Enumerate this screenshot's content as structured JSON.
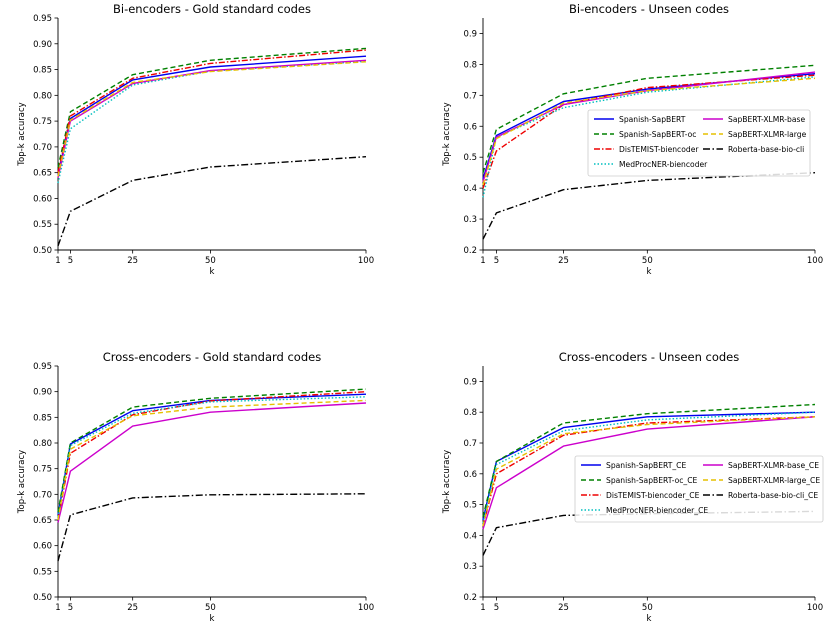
{
  "styles": {
    "Spanish-SapBERT": {
      "color": "#0000ee",
      "dash": ""
    },
    "Spanish-SapBERT-oc": {
      "color": "#008000",
      "dash": "5,3"
    },
    "DisTEMIST-biencoder": {
      "color": "#ee0000",
      "dash": "6,2,1.5,2"
    },
    "MedProcNER-biencoder": {
      "color": "#00bfbf",
      "dash": "1.5,2"
    },
    "SapBERT-XLMR-base": {
      "color": "#cc00cc",
      "dash": ""
    },
    "SapBERT-XLMR-large": {
      "color": "#e6c000",
      "dash": "5,3"
    },
    "Roberta-base-bio-cli": {
      "color": "#000000",
      "dash": "7,2.5,1.5,2.5"
    }
  },
  "chart_data": [
    {
      "type": "line",
      "title": "Bi-encoders - Gold standard codes",
      "xlabel": "k",
      "ylabel": "Top-k accuracy",
      "x": [
        1,
        5,
        25,
        50,
        100
      ],
      "xticks": [
        1,
        5,
        25,
        50,
        100
      ],
      "ylim": [
        0.5,
        0.95
      ],
      "yticks": [
        "0.50",
        "0.55",
        "0.60",
        "0.65",
        "0.70",
        "0.75",
        "0.80",
        "0.85",
        "0.90",
        "0.95"
      ],
      "legend": null,
      "series": [
        {
          "name": "Spanish-SapBERT",
          "style": "Spanish-SapBERT",
          "values": [
            0.645,
            0.755,
            0.83,
            0.855,
            0.876
          ]
        },
        {
          "name": "Spanish-SapBERT-oc",
          "style": "Spanish-SapBERT-oc",
          "values": [
            0.66,
            0.768,
            0.84,
            0.868,
            0.891
          ]
        },
        {
          "name": "DisTEMIST-biencoder",
          "style": "DisTEMIST-biencoder",
          "values": [
            0.65,
            0.76,
            0.833,
            0.862,
            0.888
          ]
        },
        {
          "name": "MedProcNER-biencoder",
          "style": "MedProcNER-biencoder",
          "values": [
            0.63,
            0.735,
            0.82,
            0.847,
            0.866
          ]
        },
        {
          "name": "SapBERT-XLMR-base",
          "style": "SapBERT-XLMR-base",
          "values": [
            0.64,
            0.75,
            0.823,
            0.848,
            0.868
          ]
        },
        {
          "name": "SapBERT-XLMR-large",
          "style": "SapBERT-XLMR-large",
          "values": [
            0.643,
            0.752,
            0.825,
            0.846,
            0.865
          ]
        },
        {
          "name": "Roberta-base-bio-cli",
          "style": "Roberta-base-bio-cli",
          "values": [
            0.508,
            0.575,
            0.635,
            0.661,
            0.681
          ]
        }
      ]
    },
    {
      "type": "line",
      "title": "Bi-encoders - Unseen codes",
      "xlabel": "k",
      "ylabel": "Top-k accuracy",
      "x": [
        1,
        5,
        25,
        50,
        100
      ],
      "xticks": [
        1,
        5,
        25,
        50,
        100
      ],
      "ylim": [
        0.2,
        0.95
      ],
      "yticks": [
        "0.2",
        "0.3",
        "0.4",
        "0.5",
        "0.6",
        "0.7",
        "0.8",
        "0.9"
      ],
      "legend": "center-right",
      "series": [
        {
          "name": "Spanish-SapBERT",
          "style": "Spanish-SapBERT",
          "values": [
            0.43,
            0.57,
            0.68,
            0.72,
            0.77
          ]
        },
        {
          "name": "Spanish-SapBERT-oc",
          "style": "Spanish-SapBERT-oc",
          "values": [
            0.45,
            0.59,
            0.705,
            0.755,
            0.797
          ]
        },
        {
          "name": "DisTEMIST-biencoder",
          "style": "DisTEMIST-biencoder",
          "values": [
            0.4,
            0.52,
            0.67,
            0.725,
            0.765
          ]
        },
        {
          "name": "MedProcNER-biencoder",
          "style": "MedProcNER-biencoder",
          "values": [
            0.37,
            0.565,
            0.66,
            0.71,
            0.76
          ]
        },
        {
          "name": "SapBERT-XLMR-base",
          "style": "SapBERT-XLMR-base",
          "values": [
            0.42,
            0.565,
            0.67,
            0.715,
            0.775
          ]
        },
        {
          "name": "SapBERT-XLMR-large",
          "style": "SapBERT-XLMR-large",
          "values": [
            0.41,
            0.56,
            0.675,
            0.715,
            0.755
          ]
        },
        {
          "name": "Roberta-base-bio-cli",
          "style": "Roberta-base-bio-cli",
          "values": [
            0.235,
            0.32,
            0.395,
            0.425,
            0.45
          ]
        }
      ]
    },
    {
      "type": "line",
      "title": "Cross-encoders - Gold standard codes",
      "xlabel": "k",
      "ylabel": "Top-k accuracy",
      "x": [
        1,
        5,
        25,
        50,
        100
      ],
      "xticks": [
        1,
        5,
        25,
        50,
        100
      ],
      "ylim": [
        0.5,
        0.95
      ],
      "yticks": [
        "0.50",
        "0.55",
        "0.60",
        "0.65",
        "0.70",
        "0.75",
        "0.80",
        "0.85",
        "0.90",
        "0.95"
      ],
      "legend": null,
      "series": [
        {
          "name": "Spanish-SapBERT_CE",
          "style": "Spanish-SapBERT",
          "values": [
            0.66,
            0.798,
            0.863,
            0.883,
            0.895
          ]
        },
        {
          "name": "Spanish-SapBERT-oc_CE",
          "style": "Spanish-SapBERT-oc",
          "values": [
            0.665,
            0.8,
            0.87,
            0.887,
            0.905
          ]
        },
        {
          "name": "DisTEMIST-biencoder_CE",
          "style": "DisTEMIST-biencoder",
          "values": [
            0.65,
            0.78,
            0.855,
            0.882,
            0.9
          ]
        },
        {
          "name": "MedProcNER-biencoder_CE",
          "style": "MedProcNER-biencoder",
          "values": [
            0.655,
            0.795,
            0.858,
            0.88,
            0.89
          ]
        },
        {
          "name": "SapBERT-XLMR-base_CE",
          "style": "SapBERT-XLMR-base",
          "values": [
            0.645,
            0.745,
            0.833,
            0.86,
            0.878
          ]
        },
        {
          "name": "SapBERT-XLMR-large_CE",
          "style": "SapBERT-XLMR-large",
          "values": [
            0.65,
            0.788,
            0.853,
            0.87,
            0.883
          ]
        },
        {
          "name": "Roberta-base-bio-cli_CE",
          "style": "Roberta-base-bio-cli",
          "values": [
            0.57,
            0.66,
            0.693,
            0.699,
            0.701
          ]
        }
      ]
    },
    {
      "type": "line",
      "title": "Cross-encoders - Unseen codes",
      "xlabel": "k",
      "ylabel": "Top-k accuracy",
      "x": [
        1,
        5,
        25,
        50,
        100
      ],
      "xticks": [
        1,
        5,
        25,
        50,
        100
      ],
      "ylim": [
        0.2,
        0.95
      ],
      "yticks": [
        "0.2",
        "0.3",
        "0.4",
        "0.5",
        "0.6",
        "0.7",
        "0.8",
        "0.9"
      ],
      "legend": "center-right",
      "series": [
        {
          "name": "Spanish-SapBERT_CE",
          "style": "Spanish-SapBERT",
          "values": [
            0.45,
            0.64,
            0.75,
            0.785,
            0.8
          ]
        },
        {
          "name": "Spanish-SapBERT-oc_CE",
          "style": "Spanish-SapBERT-oc",
          "values": [
            0.46,
            0.64,
            0.765,
            0.795,
            0.825
          ]
        },
        {
          "name": "DisTEMIST-biencoder_CE",
          "style": "DisTEMIST-biencoder",
          "values": [
            0.43,
            0.6,
            0.725,
            0.765,
            0.785
          ]
        },
        {
          "name": "MedProcNER-biencoder_CE",
          "style": "MedProcNER-biencoder",
          "values": [
            0.44,
            0.63,
            0.74,
            0.775,
            0.8
          ]
        },
        {
          "name": "SapBERT-XLMR-base_CE",
          "style": "SapBERT-XLMR-base",
          "values": [
            0.42,
            0.555,
            0.69,
            0.745,
            0.785
          ]
        },
        {
          "name": "SapBERT-XLMR-large_CE",
          "style": "SapBERT-XLMR-large",
          "values": [
            0.43,
            0.615,
            0.73,
            0.76,
            0.785
          ]
        },
        {
          "name": "Roberta-base-bio-cli_CE",
          "style": "Roberta-base-bio-cli",
          "values": [
            0.335,
            0.425,
            0.465,
            0.47,
            0.478
          ]
        }
      ]
    }
  ]
}
